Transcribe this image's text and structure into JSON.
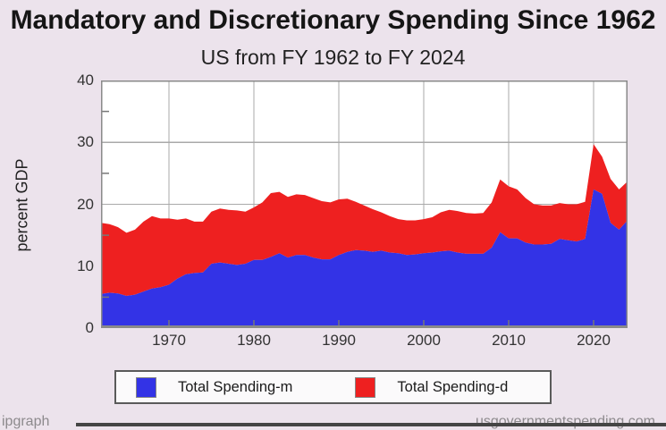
{
  "page": {
    "background": "#ece3ec",
    "watermark_left": "ipgraph",
    "watermark_right": "usgovernmentspending.com"
  },
  "chart_data": {
    "type": "area",
    "stacked": true,
    "title": "Mandatory and Discretionary Spending Since 1962",
    "subtitle": "US from FY 1962 to FY 2024",
    "xlabel": "",
    "ylabel": "percent GDP",
    "xlim": [
      1962,
      2024
    ],
    "ylim": [
      0,
      40
    ],
    "x_ticks": [
      1970,
      1980,
      1990,
      2000,
      2010,
      2020
    ],
    "y_ticks": [
      0,
      10,
      20,
      30,
      40
    ],
    "y_minor_ticks": [
      5,
      15,
      25,
      35
    ],
    "grid": true,
    "legend_position": "bottom",
    "plot_background": "#ffffff",
    "grid_color": "#a9a9a9",
    "axis_color": "#8a8a8a",
    "years": [
      1962,
      1963,
      1964,
      1965,
      1966,
      1967,
      1968,
      1969,
      1970,
      1971,
      1972,
      1973,
      1974,
      1975,
      1976,
      1977,
      1978,
      1979,
      1980,
      1981,
      1982,
      1983,
      1984,
      1985,
      1986,
      1987,
      1988,
      1989,
      1990,
      1991,
      1992,
      1993,
      1994,
      1995,
      1996,
      1997,
      1998,
      1999,
      2000,
      2001,
      2002,
      2003,
      2004,
      2005,
      2006,
      2007,
      2008,
      2009,
      2010,
      2011,
      2012,
      2013,
      2014,
      2015,
      2016,
      2017,
      2018,
      2019,
      2020,
      2021,
      2022,
      2023,
      2024
    ],
    "series": [
      {
        "name": "Total Spending-m",
        "color": "#3333e6",
        "values": [
          5.5,
          5.7,
          5.6,
          5.2,
          5.4,
          5.9,
          6.4,
          6.6,
          7.0,
          8.0,
          8.7,
          8.9,
          9.0,
          10.4,
          10.6,
          10.4,
          10.2,
          10.4,
          11.0,
          11.0,
          11.5,
          12.1,
          11.4,
          11.8,
          11.8,
          11.4,
          11.1,
          11.1,
          11.8,
          12.3,
          12.6,
          12.5,
          12.3,
          12.5,
          12.2,
          12.1,
          11.8,
          11.9,
          12.1,
          12.2,
          12.4,
          12.5,
          12.2,
          12.0,
          12.0,
          12.0,
          13.0,
          15.5,
          14.5,
          14.5,
          13.8,
          13.5,
          13.5,
          13.6,
          14.4,
          14.2,
          14.0,
          14.4,
          22.4,
          21.7,
          17.0,
          15.9,
          17.4
        ]
      },
      {
        "name": "Total Spending-d",
        "color": "#ee2020",
        "values": [
          11.5,
          11.1,
          10.7,
          10.2,
          10.5,
          11.3,
          11.7,
          11.1,
          10.7,
          9.5,
          9.0,
          8.3,
          8.2,
          8.4,
          8.7,
          8.7,
          8.8,
          8.4,
          8.5,
          9.3,
          10.3,
          9.9,
          9.8,
          9.8,
          9.7,
          9.6,
          9.4,
          9.2,
          9.0,
          8.6,
          7.8,
          7.3,
          6.9,
          6.2,
          5.9,
          5.5,
          5.6,
          5.5,
          5.5,
          5.7,
          6.3,
          6.6,
          6.7,
          6.6,
          6.5,
          6.6,
          7.3,
          8.5,
          8.4,
          7.9,
          7.2,
          6.5,
          6.3,
          6.2,
          5.8,
          5.8,
          6.0,
          6.0,
          7.3,
          6.0,
          7.1,
          6.5,
          6.3
        ]
      }
    ]
  }
}
